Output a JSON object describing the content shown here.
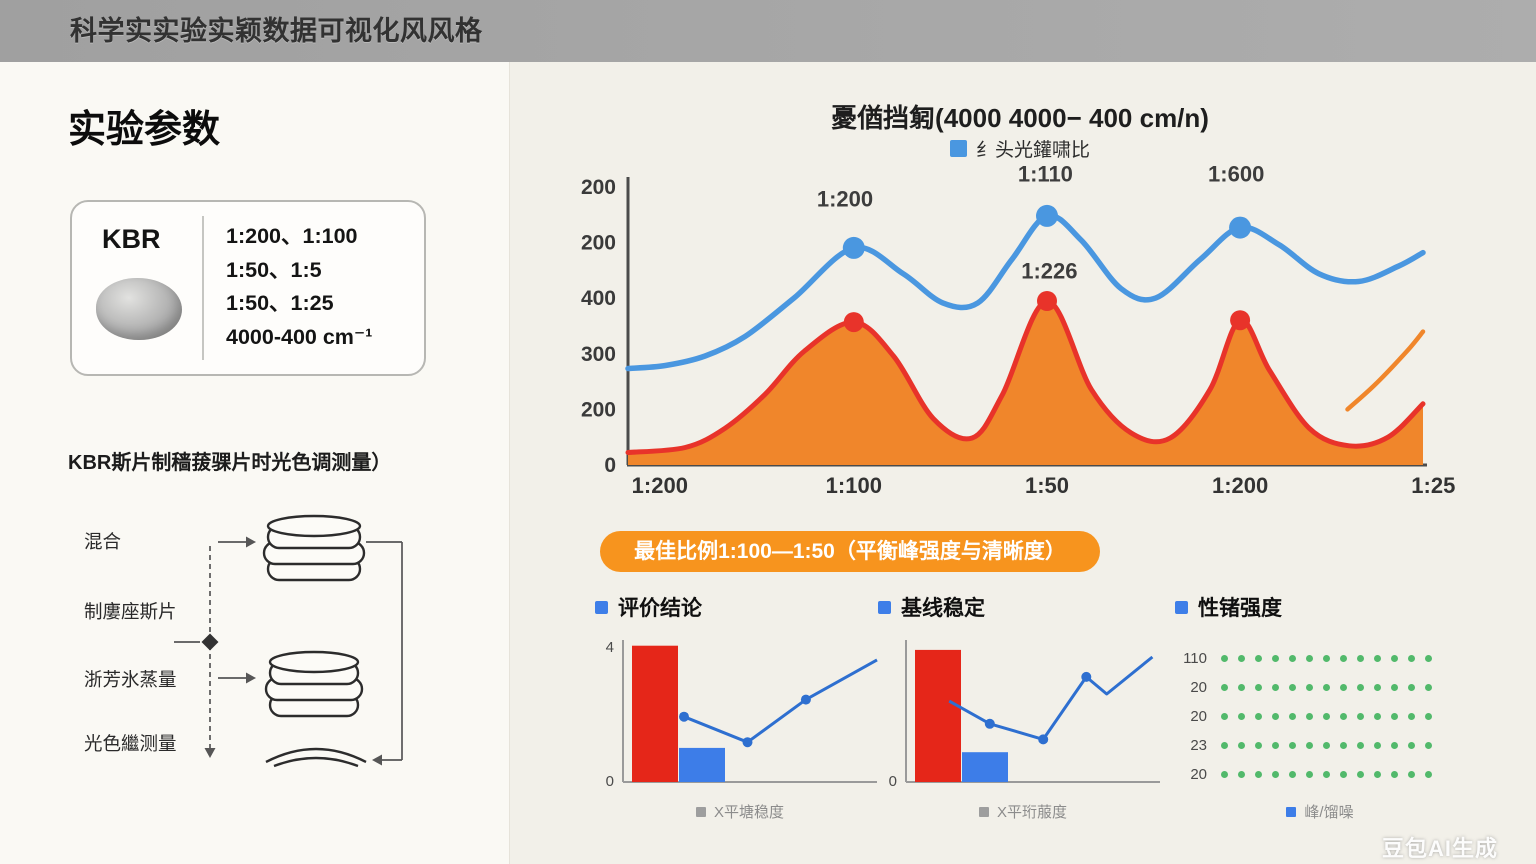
{
  "topbar": {
    "title": "科学实实验实颖数据可视化风风格"
  },
  "left": {
    "title": "实验参数",
    "card": {
      "label": "KBR",
      "lines": [
        "1:200、1:100",
        "1:50、1:5",
        "1:50、1:25",
        "4000-400 cm⁻¹"
      ]
    },
    "caption": "KBR斯片制穑菝骒片时光色调测量）",
    "flow_steps": [
      {
        "label": "混合"
      },
      {
        "label": "制廔座斯片"
      },
      {
        "label": "浙芳氷蒸量"
      },
      {
        "label": "光色繼测量"
      }
    ]
  },
  "banner": {
    "text": "最佳比例1:100—1:50（平衡峰强度与清晰度）",
    "color": "#f7941e"
  },
  "watermark": "豆包AI生成",
  "chart_data": [
    {
      "id": "main",
      "type": "line",
      "title": "憂偤挡匑(4000 4000− 400 cm/n)",
      "legend": [
        {
          "label": "纟头光鑵啸比",
          "color": "#4a97e0"
        }
      ],
      "x_ticks": [
        {
          "label": "1:200",
          "pos": 4
        },
        {
          "label": "1:100",
          "pos": 28.4
        },
        {
          "label": "1:50",
          "pos": 52.7
        },
        {
          "label": "1:200",
          "pos": 77
        },
        {
          "label": "1:25",
          "pos": 101.3
        }
      ],
      "y_tick_labels": [
        "200",
        "200",
        "400",
        "300",
        "200",
        "0"
      ],
      "area_fill": "#f0862b",
      "series": [
        {
          "name": "red-curve",
          "color": "#e8332a",
          "width": 5,
          "points": [
            [
              0,
              4.5
            ],
            [
              7.2,
              6.3
            ],
            [
              12.2,
              13.2
            ],
            [
              17.2,
              25.3
            ],
            [
              22.2,
              41
            ],
            [
              28.4,
              51.4
            ],
            [
              33.4,
              39.2
            ],
            [
              38.4,
              16.7
            ],
            [
              43.3,
              9.7
            ],
            [
              47.1,
              25.3
            ],
            [
              52.7,
              59
            ],
            [
              58.3,
              27.1
            ],
            [
              63.3,
              11.5
            ],
            [
              68.2,
              9.7
            ],
            [
              73.2,
              27.1
            ],
            [
              77,
              52.1
            ],
            [
              80.7,
              34
            ],
            [
              85.7,
              13.2
            ],
            [
              90.7,
              6.9
            ],
            [
              95.6,
              10
            ],
            [
              100,
              22
            ]
          ]
        },
        {
          "name": "blue-curve",
          "color": "#4a97e0",
          "width": 5.5,
          "points": [
            [
              0,
              34.7
            ],
            [
              4.7,
              35.8
            ],
            [
              9.7,
              39.2
            ],
            [
              14.7,
              46.2
            ],
            [
              20.9,
              60.1
            ],
            [
              28.4,
              78.1
            ],
            [
              34.6,
              68.8
            ],
            [
              39.6,
              58.3
            ],
            [
              44,
              58.3
            ],
            [
              48.3,
              74
            ],
            [
              52.7,
              89.6
            ],
            [
              57,
              80.9
            ],
            [
              62,
              63.5
            ],
            [
              66.4,
              60.1
            ],
            [
              72,
              74
            ],
            [
              77,
              85.4
            ],
            [
              81.9,
              79.2
            ],
            [
              86.9,
              68.8
            ],
            [
              91.9,
              66
            ],
            [
              96.9,
              71.5
            ],
            [
              100,
              76.4
            ]
          ]
        },
        {
          "name": "orange-rise",
          "color": "#f0862b",
          "width": 4.5,
          "points": [
            [
              90.5,
              20
            ],
            [
              94,
              29
            ],
            [
              98,
              41
            ],
            [
              100,
              48
            ]
          ]
        }
      ],
      "markers": [
        {
          "color": "#4a97e0",
          "r": 11,
          "points": [
            [
              28.4,
              78.1
            ],
            [
              52.7,
              89.6
            ],
            [
              77,
              85.4
            ]
          ]
        },
        {
          "color": "#e8332a",
          "r": 10,
          "points": [
            [
              28.4,
              51.4
            ],
            [
              52.7,
              59
            ],
            [
              77,
              52.1
            ]
          ]
        }
      ],
      "annotations": [
        {
          "text": "1:200",
          "x": 27.3,
          "y": 93
        },
        {
          "text": "1:110",
          "x": 52.5,
          "y": 102
        },
        {
          "text": "1:600",
          "x": 76.5,
          "y": 102
        },
        {
          "text": "1:226",
          "x": 53,
          "y": 67
        }
      ]
    },
    {
      "id": "mini1",
      "type": "bar",
      "header": "评价结论",
      "y_labels": {
        "top": "4",
        "bottom": "0"
      },
      "bars": [
        {
          "color": "#e52619",
          "height_pct": 96
        },
        {
          "color": "#3d7de8",
          "height_pct": 24
        }
      ],
      "line": {
        "color": "#2e6fd0",
        "points": [
          [
            24,
            46
          ],
          [
            49,
            28
          ],
          [
            72,
            58
          ],
          [
            100,
            86
          ]
        ],
        "dot_indices": [
          0,
          1,
          2
        ]
      },
      "x_label": "X平塘稳度",
      "x_label_square": "#9e9e9e"
    },
    {
      "id": "mini2",
      "type": "bar",
      "header": "基线稳定",
      "y_labels": {
        "bottom": "0"
      },
      "bars": [
        {
          "color": "#e52619",
          "height_pct": 93
        },
        {
          "color": "#3d7de8",
          "height_pct": 21
        }
      ],
      "line": {
        "color": "#2e6fd0",
        "points": [
          [
            17,
            57
          ],
          [
            33,
            41
          ],
          [
            54,
            30
          ],
          [
            71,
            74
          ],
          [
            79,
            62
          ],
          [
            97,
            88
          ]
        ],
        "dot_indices": [
          1,
          2,
          3
        ]
      },
      "x_label": "X平珩菔度",
      "x_label_square": "#9e9e9e"
    },
    {
      "id": "mini3",
      "type": "dot-grid",
      "header": "性锗强度",
      "rows": [
        {
          "label": "110"
        },
        {
          "label": "20"
        },
        {
          "label": "20"
        },
        {
          "label": "23"
        },
        {
          "label": "20"
        }
      ],
      "dots_per_row": 13,
      "dot_color": "#52b96b",
      "legend_label": "峰/馏噪",
      "legend_square": "#3d7de8"
    }
  ]
}
